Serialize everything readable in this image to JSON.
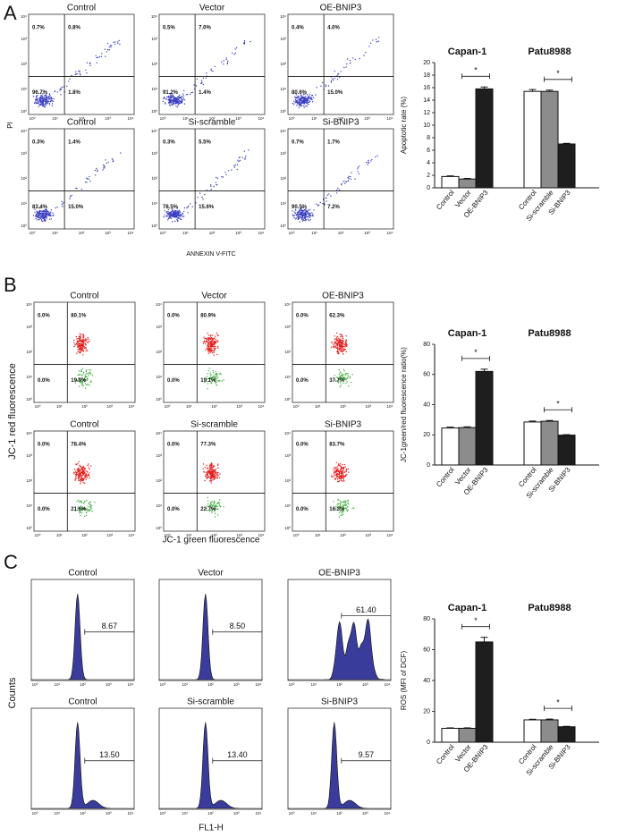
{
  "panels": [
    {
      "label": "A",
      "x_axis_label": "ANNEXIN V-FITC",
      "y_axis_label": "PI",
      "tick_labels": [
        "10⁰",
        "10¹",
        "10²",
        "10³",
        "10⁴"
      ],
      "plots": [
        {
          "title": "Control",
          "quadrants": [
            "0.7%",
            "0.8%",
            "96.7%",
            "1.8%"
          ]
        },
        {
          "title": "Vector",
          "quadrants": [
            "0.5%",
            "7.0%",
            "91.2%",
            "1.4%"
          ]
        },
        {
          "title": "OE-BNIP3",
          "quadrants": [
            "0.4%",
            "4.0%",
            "80.6%",
            "15.0%"
          ]
        },
        {
          "title": "Control",
          "quadrants": [
            "0.3%",
            "1.4%",
            "83.4%",
            "15.0%"
          ]
        },
        {
          "title": "Si-scramble",
          "quadrants": [
            "0.3%",
            "5.5%",
            "78.5%",
            "15.6%"
          ]
        },
        {
          "title": "Si-BNIP3",
          "quadrants": [
            "0.7%",
            "1.7%",
            "90.5%",
            "7.2%"
          ]
        }
      ]
    },
    {
      "label": "B",
      "x_axis_label": "JC-1 green fluorescence",
      "y_axis_label": "JC-1 red fluorescence",
      "tick_labels": [
        "10⁰",
        "10¹",
        "10²",
        "10³",
        "10⁴"
      ],
      "plots": [
        {
          "title": "Control",
          "quadrants": [
            "0.0%",
            "80.1%",
            "0.0%",
            "19.9%"
          ]
        },
        {
          "title": "Vector",
          "quadrants": [
            "0.0%",
            "80.9%",
            "0.0%",
            "19.1%"
          ]
        },
        {
          "title": "OE-BNIP3",
          "quadrants": [
            "0.0%",
            "62.3%",
            "0.0%",
            "37.7%"
          ]
        },
        {
          "title": "Control",
          "quadrants": [
            "0.0%",
            "78.4%",
            "0.0%",
            "21.6%"
          ]
        },
        {
          "title": "Si-scramble",
          "quadrants": [
            "0.0%",
            "77.3%",
            "0.0%",
            "22.7%"
          ]
        },
        {
          "title": "Si-BNIP3",
          "quadrants": [
            "0.0%",
            "83.7%",
            "0.0%",
            "16.3%"
          ]
        }
      ]
    },
    {
      "label": "C",
      "x_axis_label": "FL1-H",
      "y_axis_label": "Counts",
      "tick_labels": [
        "10⁰",
        "10¹",
        "10²",
        "10³",
        "10⁴"
      ],
      "plots": [
        {
          "title": "Control",
          "marker": "8.67"
        },
        {
          "title": "Vector",
          "marker": "8.50"
        },
        {
          "title": "OE-BNIP3",
          "marker": "61.40"
        },
        {
          "title": "Control",
          "marker": "13.50"
        },
        {
          "title": "Si-scramble",
          "marker": "13.40"
        },
        {
          "title": "Si-BNIP3",
          "marker": "9.57"
        }
      ]
    }
  ],
  "chart_data": [
    {
      "type": "bar",
      "y_label": "Apoptotic rate (%)",
      "ylim": [
        0,
        20
      ],
      "yticks": [
        0,
        2,
        4,
        6,
        8,
        10,
        12,
        14,
        16,
        18,
        20
      ],
      "colors": [
        "#ffffff",
        "#8c8c8c",
        "#1e1e1e"
      ],
      "groups": [
        {
          "name": "Capan-1",
          "categories": [
            "Control",
            "Vector",
            "OE-BNIP3"
          ],
          "values": [
            1.8,
            1.4,
            15.8
          ],
          "errors": [
            0.1,
            0.1,
            0.3
          ],
          "significance": "*"
        },
        {
          "name": "Patu8988",
          "categories": [
            "Control",
            "Si-scramble",
            "Si-BNIP3"
          ],
          "values": [
            15.4,
            15.4,
            7.0
          ],
          "errors": [
            0.3,
            0.2,
            0.1
          ],
          "significance": "*"
        }
      ]
    },
    {
      "type": "bar",
      "y_label": "JC-1green/red fluorescence ratio(%)",
      "ylim": [
        0,
        80
      ],
      "yticks": [
        0,
        20,
        40,
        60,
        80
      ],
      "colors": [
        "#ffffff",
        "#8c8c8c",
        "#1e1e1e"
      ],
      "groups": [
        {
          "name": "Capan-1",
          "categories": [
            "Control",
            "Vector",
            "OE-BNIP3"
          ],
          "values": [
            24.5,
            24.8,
            62.0
          ],
          "errors": [
            0.6,
            0.5,
            1.5
          ],
          "significance": "*"
        },
        {
          "name": "Patu8988",
          "categories": [
            "Control",
            "Si-scramble",
            "Si-BNIP3"
          ],
          "values": [
            28.5,
            29.0,
            19.8
          ],
          "errors": [
            0.6,
            0.5,
            0.3
          ],
          "significance": "*"
        }
      ]
    },
    {
      "type": "bar",
      "y_label": "ROS (MFI of DCF)",
      "ylim": [
        0,
        80
      ],
      "yticks": [
        0,
        20,
        40,
        60,
        80
      ],
      "colors": [
        "#ffffff",
        "#8c8c8c",
        "#1e1e1e"
      ],
      "groups": [
        {
          "name": "Capan-1",
          "categories": [
            "Control",
            "Vector",
            "OE-BNIP3"
          ],
          "values": [
            9.0,
            9.0,
            65.0
          ],
          "errors": [
            0.3,
            0.3,
            3.0
          ],
          "significance": "*"
        },
        {
          "name": "Patu8988",
          "categories": [
            "Control",
            "Si-scramble",
            "Si-BNIP3"
          ],
          "values": [
            14.5,
            14.5,
            10.0
          ],
          "errors": [
            0.4,
            0.5,
            0.3
          ],
          "significance": "*"
        }
      ]
    }
  ]
}
